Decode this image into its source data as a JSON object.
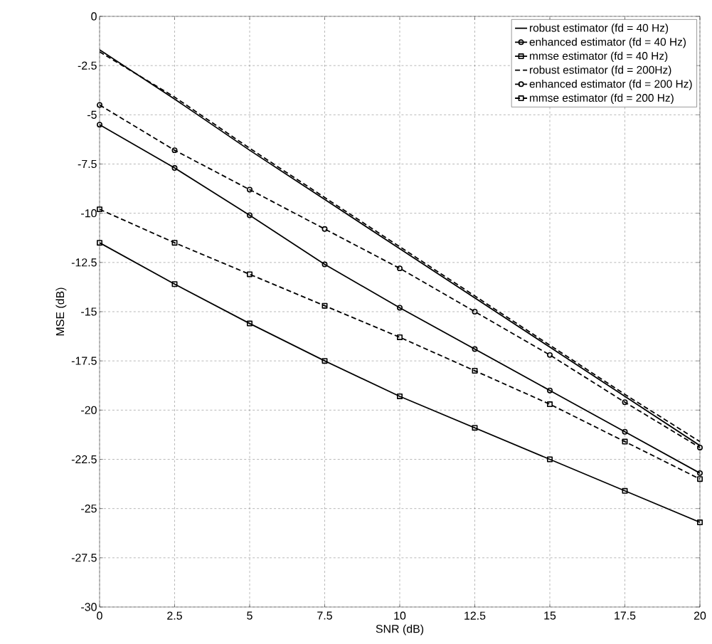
{
  "chart_data": {
    "type": "line",
    "xlabel": "SNR (dB)",
    "ylabel": "MSE (dB)",
    "x": [
      0,
      2.5,
      5,
      7.5,
      10,
      12.5,
      15,
      17.5,
      20
    ],
    "xlim": [
      0,
      20
    ],
    "xticks": [
      0,
      2.5,
      5,
      7.5,
      10,
      12.5,
      15,
      17.5,
      20
    ],
    "ylim": [
      -30,
      0
    ],
    "yticks": [
      -30,
      -27.5,
      -25,
      -22.5,
      -20,
      -17.5,
      -15,
      -12.5,
      -10,
      -7.5,
      -5,
      -2.5,
      0
    ],
    "grid": true,
    "legend": "top right",
    "series": [
      {
        "name": "robust estimator (fd = 40 Hz)",
        "color": "#000000",
        "marker": "none",
        "line_style": "solid",
        "values": [
          -1.7,
          -4.2,
          -6.8,
          -9.3,
          -11.8,
          -14.3,
          -16.8,
          -19.3,
          -21.8
        ]
      },
      {
        "name": "enhanced estimator (fd = 40 Hz)",
        "color": "#000000",
        "marker": "circle",
        "line_style": "solid",
        "values": [
          -5.5,
          -7.7,
          -10.1,
          -12.6,
          -14.8,
          -16.9,
          -19.0,
          -21.1,
          -23.2
        ]
      },
      {
        "name": "mmse estimator (fd = 40 Hz)",
        "color": "#000000",
        "marker": "square",
        "line_style": "solid",
        "values": [
          -11.5,
          -13.6,
          -15.6,
          -17.5,
          -19.3,
          -20.9,
          -22.5,
          -24.1,
          -25.7
        ]
      },
      {
        "name": "robust estimator (fd = 200Hz)",
        "color": "#000000",
        "marker": "none",
        "line_style": "dashed",
        "values": [
          -1.8,
          -4.1,
          -6.7,
          -9.2,
          -11.7,
          -14.2,
          -16.7,
          -19.2,
          -21.6
        ]
      },
      {
        "name": "enhanced estimator (fd = 200 Hz)",
        "color": "#000000",
        "marker": "circle",
        "line_style": "dashed",
        "values": [
          -4.5,
          -6.8,
          -8.8,
          -10.8,
          -12.8,
          -15.0,
          -17.2,
          -19.6,
          -21.9
        ]
      },
      {
        "name": "mmse estimator (fd = 200 Hz)",
        "color": "#000000",
        "marker": "square",
        "line_style": "dashed",
        "values": [
          -9.8,
          -11.5,
          -13.1,
          -14.7,
          -16.3,
          -18.0,
          -19.7,
          -21.6,
          -23.5
        ]
      }
    ]
  }
}
